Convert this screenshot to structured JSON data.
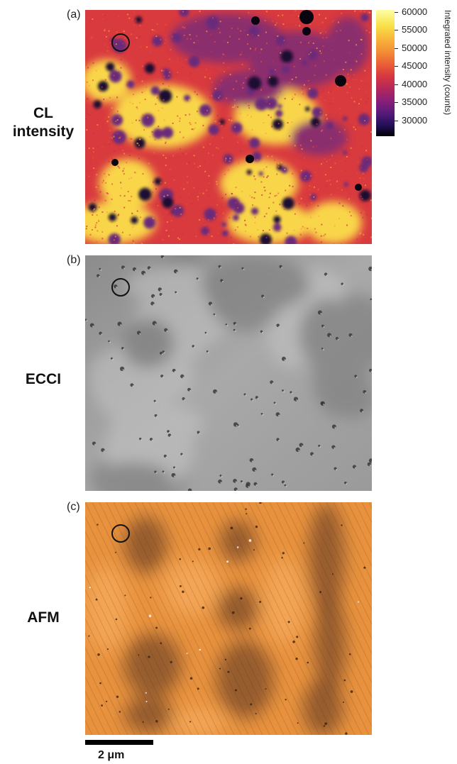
{
  "panels": [
    {
      "letter": "(a)",
      "label": "CL\nintensity",
      "type": "cl"
    },
    {
      "letter": "(b)",
      "label": "ECCI",
      "type": "ecci"
    },
    {
      "letter": "(c)",
      "label": "AFM",
      "type": "afm"
    }
  ],
  "colorbar": {
    "title": "Integrated intensity (counts)",
    "ticks": [
      "60000",
      "55000",
      "50000",
      "45000",
      "40000",
      "35000",
      "30000"
    ],
    "range": [
      27000,
      62000
    ],
    "colormap": "inferno"
  },
  "scalebar": {
    "label": "2 μm"
  }
}
